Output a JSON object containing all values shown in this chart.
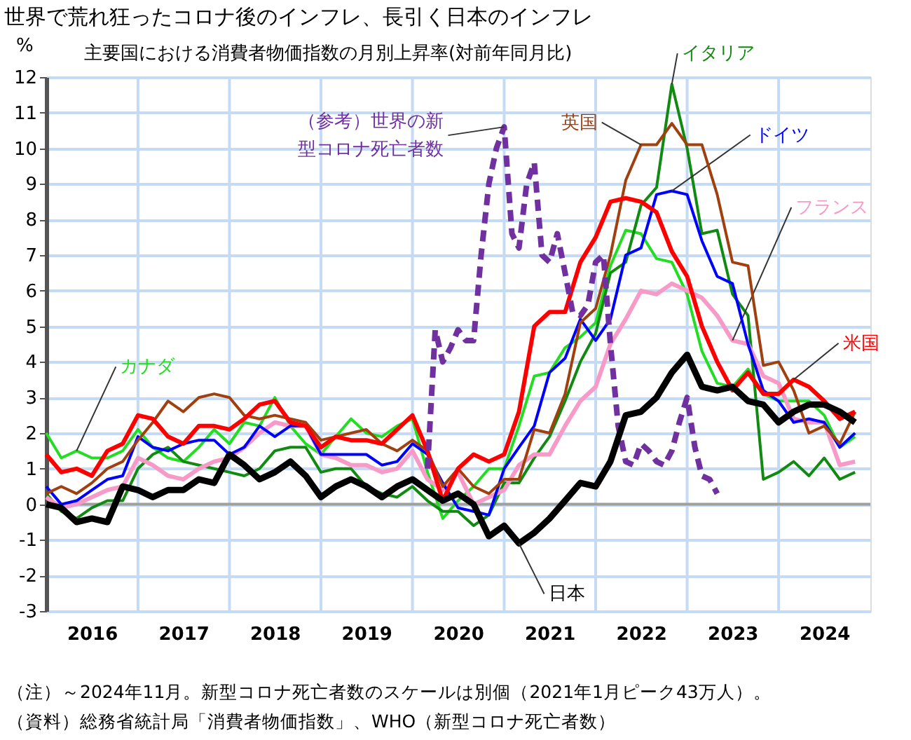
{
  "chart_data": {
    "type": "line",
    "title": "世界で荒れ狂ったコロナ後のインフレ、長引く日本のインフレ",
    "subtitle": "主要国における消費者物価指数の月別上昇率(対前年同月比)",
    "ylabel": "%",
    "x": [
      "2016-01",
      "2016-03",
      "2016-05",
      "2016-07",
      "2016-09",
      "2016-11",
      "2017-01",
      "2017-03",
      "2017-05",
      "2017-07",
      "2017-09",
      "2017-11",
      "2018-01",
      "2018-03",
      "2018-05",
      "2018-07",
      "2018-09",
      "2018-11",
      "2019-01",
      "2019-03",
      "2019-05",
      "2019-07",
      "2019-09",
      "2019-11",
      "2020-01",
      "2020-03",
      "2020-05",
      "2020-07",
      "2020-09",
      "2020-11",
      "2021-01",
      "2021-03",
      "2021-05",
      "2021-07",
      "2021-09",
      "2021-11",
      "2022-01",
      "2022-03",
      "2022-05",
      "2022-07",
      "2022-09",
      "2022-11",
      "2023-01",
      "2023-03",
      "2023-05",
      "2023-07",
      "2023-09",
      "2023-11",
      "2024-01",
      "2024-03",
      "2024-05",
      "2024-07",
      "2024-09",
      "2024-11"
    ],
    "series": [
      {
        "name": "カナダ",
        "color": "#22dd22",
        "values": [
          2.0,
          1.3,
          1.5,
          1.3,
          1.3,
          1.5,
          2.1,
          1.6,
          1.3,
          1.2,
          1.6,
          2.1,
          1.7,
          2.3,
          2.2,
          3.0,
          2.2,
          1.7,
          1.4,
          1.9,
          2.4,
          2.0,
          1.9,
          2.2,
          2.4,
          0.9,
          -0.4,
          0.1,
          0.5,
          1.0,
          1.0,
          2.2,
          3.6,
          3.7,
          4.4,
          4.7,
          5.1,
          6.7,
          7.7,
          7.6,
          6.9,
          6.8,
          5.9,
          4.3,
          3.4,
          3.3,
          3.8,
          3.1,
          2.9,
          2.9,
          2.9,
          2.5,
          1.6,
          1.9
        ]
      },
      {
        "name": "イタリア",
        "color": "#108a10",
        "values": [
          0.3,
          -0.2,
          -0.4,
          -0.1,
          0.1,
          0.1,
          1.0,
          1.4,
          1.6,
          1.2,
          1.1,
          1.0,
          0.9,
          0.8,
          1.0,
          1.5,
          1.6,
          1.6,
          0.9,
          1.0,
          1.0,
          0.5,
          0.3,
          0.2,
          0.5,
          0.1,
          -0.2,
          -0.2,
          -0.6,
          -0.3,
          0.6,
          0.6,
          1.3,
          1.9,
          2.9,
          4.0,
          4.8,
          6.5,
          6.8,
          8.4,
          8.9,
          11.8,
          10.0,
          7.6,
          7.7,
          5.9,
          5.3,
          0.7,
          0.9,
          1.2,
          0.8,
          1.3,
          0.7,
          0.9
        ]
      },
      {
        "name": "フランス",
        "color": "#f79ac8",
        "values": [
          0.2,
          -0.1,
          0.0,
          0.2,
          0.4,
          0.5,
          1.3,
          1.1,
          0.8,
          0.7,
          1.0,
          1.2,
          1.3,
          1.6,
          2.0,
          2.3,
          2.2,
          2.2,
          1.4,
          1.3,
          1.1,
          1.1,
          0.9,
          1.0,
          1.5,
          0.7,
          0.4,
          0.9,
          0.0,
          0.2,
          0.4,
          1.1,
          1.4,
          1.4,
          2.2,
          2.9,
          3.3,
          4.5,
          5.2,
          6.0,
          5.9,
          6.2,
          6.0,
          5.8,
          5.3,
          4.6,
          4.5,
          3.6,
          3.4,
          2.4,
          2.3,
          2.3,
          1.1,
          1.2
        ]
      },
      {
        "name": "ドイツ",
        "color": "#0000ff",
        "values": [
          0.5,
          0.0,
          0.1,
          0.4,
          0.7,
          0.8,
          1.9,
          1.6,
          1.5,
          1.7,
          1.8,
          1.8,
          1.4,
          1.6,
          2.2,
          1.9,
          2.2,
          2.2,
          1.4,
          1.4,
          1.4,
          1.4,
          1.1,
          1.2,
          1.7,
          1.4,
          0.6,
          -0.1,
          -0.2,
          -0.3,
          1.0,
          1.6,
          2.2,
          3.7,
          4.1,
          5.2,
          4.6,
          5.2,
          7.0,
          7.2,
          8.7,
          8.8,
          8.7,
          7.4,
          6.4,
          6.2,
          4.5,
          3.2,
          2.9,
          2.3,
          2.4,
          2.3,
          1.6,
          2.0
        ]
      },
      {
        "name": "英国",
        "color": "#a0400f",
        "values": [
          0.3,
          0.5,
          0.3,
          0.6,
          1.0,
          1.2,
          1.8,
          2.3,
          2.9,
          2.6,
          3.0,
          3.1,
          3.0,
          2.5,
          2.4,
          2.5,
          2.4,
          2.3,
          1.8,
          1.9,
          2.0,
          2.1,
          1.7,
          1.5,
          1.8,
          1.5,
          0.5,
          1.0,
          0.5,
          0.3,
          0.7,
          0.7,
          2.1,
          2.0,
          3.1,
          5.1,
          5.5,
          7.0,
          9.1,
          10.1,
          10.1,
          10.7,
          10.1,
          10.1,
          8.7,
          6.8,
          6.7,
          3.9,
          4.0,
          3.2,
          2.0,
          2.2,
          1.7,
          2.6
        ]
      },
      {
        "name": "米国",
        "color": "#ff0000",
        "values": [
          1.4,
          0.9,
          1.0,
          0.8,
          1.5,
          1.7,
          2.5,
          2.4,
          1.9,
          1.7,
          2.2,
          2.2,
          2.1,
          2.4,
          2.8,
          2.9,
          2.3,
          2.2,
          1.6,
          1.9,
          1.8,
          1.8,
          1.7,
          2.1,
          2.5,
          1.5,
          0.1,
          1.0,
          1.4,
          1.2,
          1.4,
          2.6,
          5.0,
          5.4,
          5.4,
          6.8,
          7.5,
          8.5,
          8.6,
          8.5,
          8.2,
          7.1,
          6.4,
          5.0,
          4.0,
          3.2,
          3.7,
          3.1,
          3.1,
          3.5,
          3.3,
          2.9,
          2.4,
          2.6
        ]
      },
      {
        "name": "（参考）世界の新型コロナ死亡者数",
        "color": "#7030a0",
        "line_style": "dashed",
        "x": [
          "2020-03",
          "2020-04",
          "2020-05",
          "2020-06",
          "2020-07",
          "2020-08",
          "2020-09",
          "2020-10",
          "2020-11",
          "2020-12",
          "2021-01",
          "2021-02",
          "2021-03",
          "2021-04",
          "2021-05",
          "2021-06",
          "2021-07",
          "2021-08",
          "2021-09",
          "2021-10",
          "2021-11",
          "2021-12",
          "2022-01",
          "2022-02",
          "2022-03",
          "2022-04",
          "2022-05",
          "2022-06",
          "2022-07",
          "2022-08",
          "2022-09",
          "2022-10",
          "2022-11",
          "2022-12",
          "2023-01",
          "2023-02",
          "2023-03",
          "2023-04",
          "2023-05"
        ],
        "values": [
          1.0,
          4.9,
          4.0,
          4.4,
          4.9,
          4.6,
          4.6,
          7.0,
          9.0,
          10.0,
          10.6,
          7.6,
          7.2,
          9.0,
          9.6,
          7.0,
          6.8,
          7.6,
          6.5,
          5.4,
          5.3,
          5.6,
          6.8,
          7.0,
          4.5,
          2.2,
          1.2,
          1.1,
          1.7,
          1.5,
          1.2,
          1.1,
          1.5,
          2.3,
          3.0,
          1.6,
          0.8,
          0.7,
          0.3
        ]
      },
      {
        "name": "日本",
        "color": "#000000",
        "values": [
          0.0,
          -0.1,
          -0.5,
          -0.4,
          -0.5,
          0.5,
          0.4,
          0.2,
          0.4,
          0.4,
          0.7,
          0.6,
          1.4,
          1.1,
          0.7,
          0.9,
          1.2,
          0.8,
          0.2,
          0.5,
          0.7,
          0.5,
          0.2,
          0.5,
          0.7,
          0.4,
          0.1,
          0.3,
          0.0,
          -0.9,
          -0.6,
          -1.1,
          -0.8,
          -0.4,
          0.1,
          0.6,
          0.5,
          1.2,
          2.5,
          2.6,
          3.0,
          3.7,
          4.2,
          3.3,
          3.2,
          3.3,
          2.9,
          2.8,
          2.3,
          2.6,
          2.8,
          2.8,
          2.6,
          2.3
        ]
      }
    ],
    "xlim": [
      "2016-01",
      "2025-01"
    ],
    "xticks": [
      {
        "value": "2016-07",
        "label": "2016"
      },
      {
        "value": "2017-01",
        "label": null
      },
      {
        "value": "2017-07",
        "label": "2017"
      },
      {
        "value": "2018-01",
        "label": null
      },
      {
        "value": "2018-07",
        "label": "2018"
      },
      {
        "value": "2019-01",
        "label": null
      },
      {
        "value": "2019-07",
        "label": "2019"
      },
      {
        "value": "2020-01",
        "label": null
      },
      {
        "value": "2020-07",
        "label": "2020"
      },
      {
        "value": "2021-01",
        "label": null
      },
      {
        "value": "2021-07",
        "label": "2021"
      },
      {
        "value": "2022-01",
        "label": null
      },
      {
        "value": "2022-07",
        "label": "2022"
      },
      {
        "value": "2023-01",
        "label": null
      },
      {
        "value": "2023-07",
        "label": "2023"
      },
      {
        "value": "2024-01",
        "label": null
      },
      {
        "value": "2024-07",
        "label": "2024"
      }
    ],
    "ylim": [
      -3,
      12
    ],
    "yticks": [
      -3,
      -2,
      -1,
      0,
      1,
      2,
      3,
      4,
      5,
      6,
      7,
      8,
      9,
      10,
      11,
      12
    ],
    "grid": true,
    "legend": false,
    "marker": "none",
    "line_style": "solid",
    "ref_lines": [
      {
        "axis": "y",
        "value": 0,
        "color": "#a0a0a0"
      }
    ],
    "annotations": [
      "（注）～2024年11月。新型コロナ死亡者数のスケールは別個（2021年1月ピーク43万人）。",
      "（資料）総務省統計局「消費者物価指数」、WHO（新型コロナ死亡者数）"
    ]
  }
}
